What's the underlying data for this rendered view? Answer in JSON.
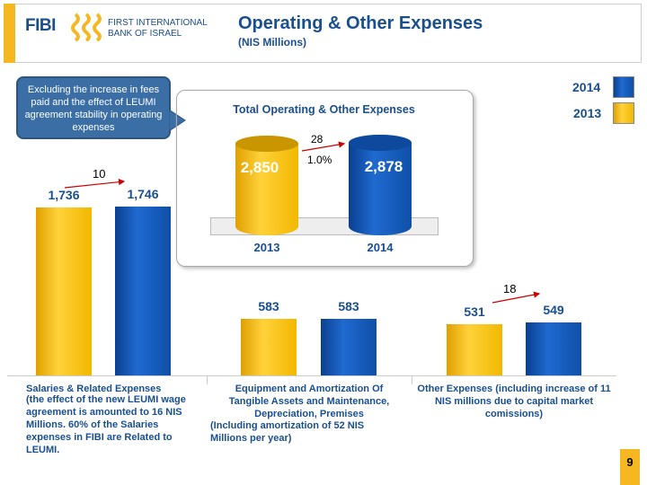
{
  "header": {
    "logo_text": "FIBI",
    "bank_name_line1": "FIRST INTERNATIONAL",
    "bank_name_line2": "BANK OF ISRAEL",
    "title": "Operating & Other Expenses",
    "subtitle": "(NIS Millions)"
  },
  "callout": "Excluding the increase in fees paid and the effect of LEUMI agreement stability in operating expenses",
  "legend": [
    {
      "label": "2014",
      "color": "#1a5fc0"
    },
    {
      "label": "2013",
      "color": "#f5bd1f"
    }
  ],
  "colors": {
    "2013": "#f5bd1f",
    "2014": "#1a5fc0",
    "text": "#1a4f8f"
  },
  "chart_data": [
    {
      "type": "bar",
      "title": "Total Operating & Other Expenses",
      "categories": [
        "2013",
        "2014"
      ],
      "values": [
        2850,
        2878
      ],
      "value_labels": [
        "2,850",
        "2,878"
      ],
      "change_label": "28",
      "change_pct": "1.0%"
    },
    {
      "type": "bar",
      "categories": [
        "Salaries & Related    Expenses",
        "Equipment and Amortization Of Tangible Assets and Maintenance, Depreciation, Premises",
        "Other Expenses (including increase of 11 NIS millions due to capital market comissions)"
      ],
      "series": [
        {
          "name": "2013",
          "values": [
            1736,
            583,
            531
          ]
        },
        {
          "name": "2014",
          "values": [
            1746,
            583,
            549
          ]
        }
      ],
      "value_labels": [
        [
          "1,736",
          "1,746"
        ],
        [
          "583",
          "583"
        ],
        [
          "531",
          "549"
        ]
      ],
      "change_labels": [
        "10",
        "",
        "18"
      ]
    }
  ],
  "notes": {
    "salaries": "(the effect of the new LEUMI wage agreement  is amounted to 16 NIS Millions. 60% of the Salaries expenses in FIBI are Related to LEUMI.",
    "equipment": "(Including amortization of 52 NIS Millions per year)"
  },
  "page_number": "9"
}
